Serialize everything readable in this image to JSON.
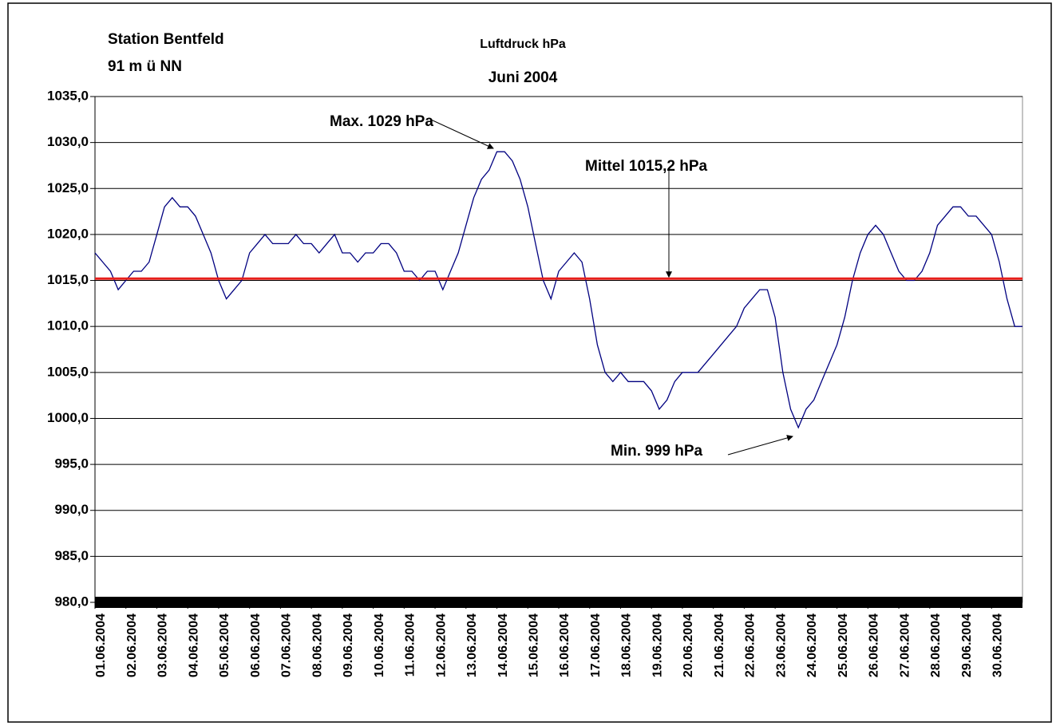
{
  "chart_data": {
    "type": "line",
    "title": "Luftdruck hPa",
    "subtitle": "Juni 2004",
    "station": [
      "Station Bentfeld",
      "91 m ü NN"
    ],
    "annotations": [
      {
        "text": "Max. 1029 hPa"
      },
      {
        "text": "Mittel 1015,2 hPa"
      },
      {
        "text": "Min. 999 hPa"
      }
    ],
    "mean": {
      "value": 1015.2,
      "color": "#e8201c"
    },
    "xlim": [
      0,
      30
    ],
    "xticks": [
      {
        "value": 0,
        "label": "01.06.2004"
      },
      {
        "value": 1,
        "label": "02.06.2004"
      },
      {
        "value": 2,
        "label": "03.06.2004"
      },
      {
        "value": 3,
        "label": "04.06.2004"
      },
      {
        "value": 4,
        "label": "05.06.2004"
      },
      {
        "value": 5,
        "label": "06.06.2004"
      },
      {
        "value": 6,
        "label": "07.06.2004"
      },
      {
        "value": 7,
        "label": "08.06.2004"
      },
      {
        "value": 8,
        "label": "09.06.2004"
      },
      {
        "value": 9,
        "label": "10.06.2004"
      },
      {
        "value": 10,
        "label": "11.06.2004"
      },
      {
        "value": 11,
        "label": "12.06.2004"
      },
      {
        "value": 12,
        "label": "13.06.2004"
      },
      {
        "value": 13,
        "label": "14.06.2004"
      },
      {
        "value": 14,
        "label": "15.06.2004"
      },
      {
        "value": 15,
        "label": "16.06.2004"
      },
      {
        "value": 16,
        "label": "17.06.2004"
      },
      {
        "value": 17,
        "label": "18.06.2004"
      },
      {
        "value": 18,
        "label": "19.06.2004"
      },
      {
        "value": 19,
        "label": "20.06.2004"
      },
      {
        "value": 20,
        "label": "21.06.2004"
      },
      {
        "value": 21,
        "label": "22.06.2004"
      },
      {
        "value": 22,
        "label": "23.06.2004"
      },
      {
        "value": 23,
        "label": "24.06.2004"
      },
      {
        "value": 24,
        "label": "25.06.2004"
      },
      {
        "value": 25,
        "label": "26.06.2004"
      },
      {
        "value": 26,
        "label": "27.06.2004"
      },
      {
        "value": 27,
        "label": "28.06.2004"
      },
      {
        "value": 28,
        "label": "29.06.2004"
      },
      {
        "value": 29,
        "label": "30.06.2004"
      }
    ],
    "ylim": [
      980,
      1035
    ],
    "yticks": [
      {
        "value": 980,
        "label": "980,0"
      },
      {
        "value": 985,
        "label": "985,0"
      },
      {
        "value": 990,
        "label": "990,0"
      },
      {
        "value": 995,
        "label": "995,0"
      },
      {
        "value": 1000,
        "label": "1000,0"
      },
      {
        "value": 1005,
        "label": "1005,0"
      },
      {
        "value": 1010,
        "label": "1010,0"
      },
      {
        "value": 1015,
        "label": "1015,0"
      },
      {
        "value": 1020,
        "label": "1020,0"
      },
      {
        "value": 1025,
        "label": "1025,0"
      },
      {
        "value": 1030,
        "label": "1030,0"
      },
      {
        "value": 1035,
        "label": "1035,0"
      }
    ],
    "grid": true,
    "x": [
      0,
      0.25,
      0.5,
      0.75,
      1,
      1.25,
      1.5,
      1.75,
      2,
      2.25,
      2.5,
      2.75,
      3,
      3.25,
      3.5,
      3.75,
      4,
      4.25,
      4.5,
      4.75,
      5,
      5.25,
      5.5,
      5.75,
      6,
      6.25,
      6.5,
      6.75,
      7,
      7.25,
      7.5,
      7.75,
      8,
      8.25,
      8.5,
      8.75,
      9,
      9.25,
      9.5,
      9.75,
      10,
      10.25,
      10.5,
      10.75,
      11,
      11.25,
      11.5,
      11.75,
      12,
      12.25,
      12.5,
      12.75,
      13,
      13.25,
      13.5,
      13.75,
      14,
      14.25,
      14.5,
      14.75,
      15,
      15.25,
      15.5,
      15.75,
      16,
      16.25,
      16.5,
      16.75,
      17,
      17.25,
      17.5,
      17.75,
      18,
      18.25,
      18.5,
      18.75,
      19,
      19.25,
      19.5,
      19.75,
      20,
      20.25,
      20.5,
      20.75,
      21,
      21.25,
      21.5,
      21.75,
      22,
      22.25,
      22.5,
      22.75,
      23,
      23.25,
      23.5,
      23.75,
      24,
      24.25,
      24.5,
      24.75,
      25,
      25.25,
      25.5,
      25.75,
      26,
      26.25,
      26.5,
      26.75,
      27,
      27.25,
      27.5,
      27.75,
      28,
      28.25,
      28.5,
      28.75,
      29,
      29.25,
      29.5,
      29.75,
      30
    ],
    "series": [
      {
        "name": "Luftdruck",
        "color": "#000080",
        "values": [
          1018,
          1017,
          1016,
          1014,
          1015,
          1016,
          1016,
          1017,
          1020,
          1023,
          1024,
          1023,
          1023,
          1022,
          1020,
          1018,
          1015,
          1013,
          1014,
          1015,
          1018,
          1019,
          1020,
          1019,
          1019,
          1019,
          1020,
          1019,
          1019,
          1018,
          1019,
          1020,
          1018,
          1018,
          1017,
          1018,
          1018,
          1019,
          1019,
          1018,
          1016,
          1016,
          1015,
          1016,
          1016,
          1014,
          1016,
          1018,
          1021,
          1024,
          1026,
          1027,
          1029,
          1029,
          1028,
          1026,
          1023,
          1019,
          1015,
          1013,
          1016,
          1017,
          1018,
          1017,
          1013,
          1008,
          1005,
          1004,
          1005,
          1004,
          1004,
          1004,
          1003,
          1001,
          1002,
          1004,
          1005,
          1005,
          1005,
          1006,
          1007,
          1008,
          1009,
          1010,
          1012,
          1013,
          1014,
          1014,
          1011,
          1005,
          1001,
          999,
          1001,
          1002,
          1004,
          1006,
          1008,
          1011,
          1015,
          1018,
          1020,
          1021,
          1020,
          1018,
          1016,
          1015,
          1015,
          1016,
          1018,
          1021,
          1022,
          1023,
          1023,
          1022,
          1022,
          1021,
          1020,
          1017,
          1013,
          1010,
          1010
        ]
      }
    ]
  }
}
